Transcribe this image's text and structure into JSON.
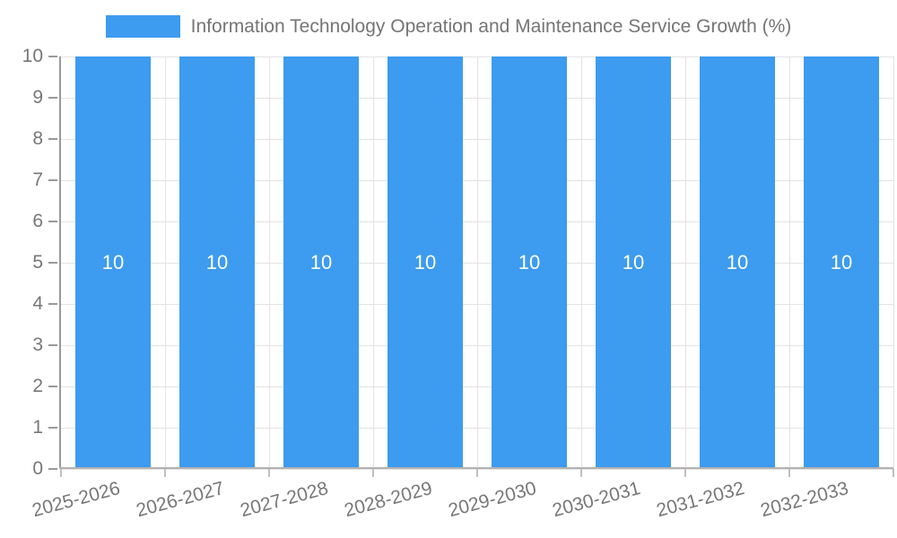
{
  "legend": {
    "series_label": "Information Technology Operation and Maintenance Service Growth (%)"
  },
  "colors": {
    "bar": "#3D9BF0",
    "bar_label_text": "#ffffff",
    "axis_text": "#777777",
    "legend_text": "#757575",
    "gridline": "#e3e3e3",
    "y_axis_line": "#999999",
    "x_axis_line": "#b3b3b3"
  },
  "chart_data": {
    "type": "bar",
    "title": "Information Technology Operation and Maintenance Service Growth (%)",
    "categories": [
      "2025-2026",
      "2026-2027",
      "2027-2028",
      "2028-2029",
      "2029-2030",
      "2030-2031",
      "2031-2032",
      "2032-2033"
    ],
    "series": [
      {
        "name": "Information Technology Operation and Maintenance Service Growth (%)",
        "values": [
          10,
          10,
          10,
          10,
          10,
          10,
          10,
          10
        ],
        "bar_labels": [
          "10",
          "10",
          "10",
          "10",
          "10",
          "10",
          "10",
          "10"
        ]
      }
    ],
    "xlabel": "",
    "ylabel": "",
    "ylim": [
      0,
      10
    ],
    "ytick_step": 1,
    "ytick_labels": [
      "0",
      "1",
      "2",
      "3",
      "4",
      "5",
      "6",
      "7",
      "8",
      "9",
      "10"
    ],
    "grid": true,
    "legend_position": "top",
    "x_label_rotation_deg": -15
  }
}
